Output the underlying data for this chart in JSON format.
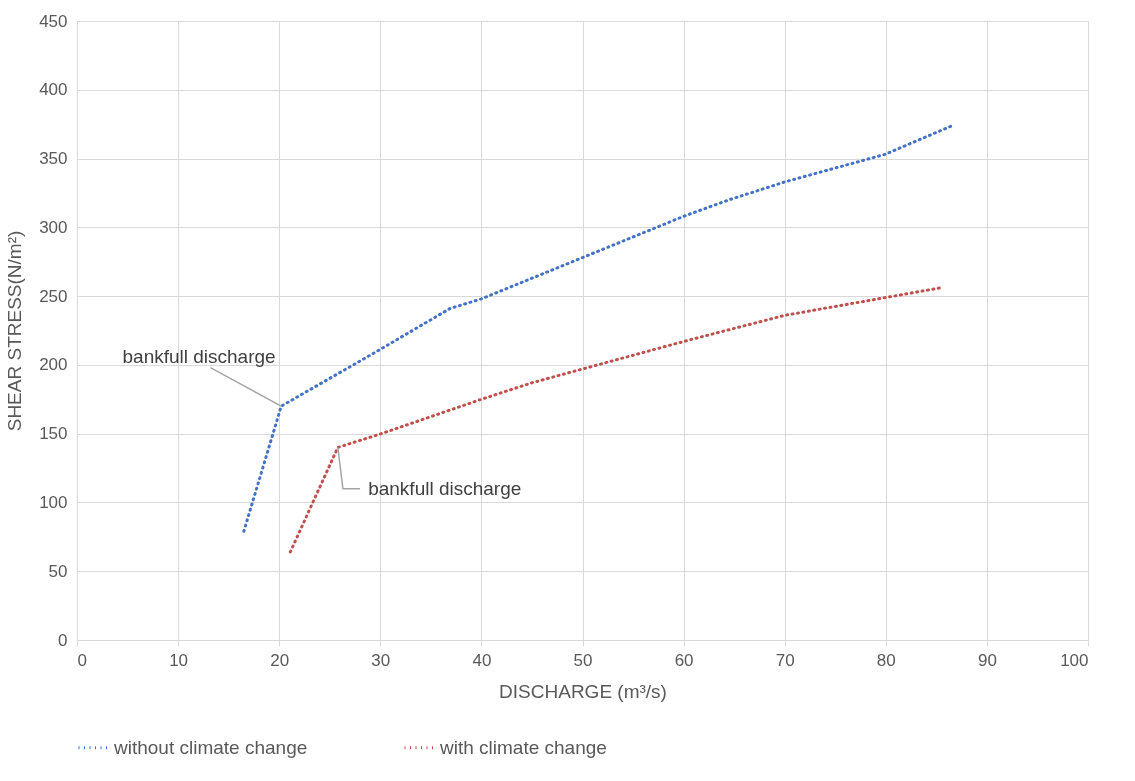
{
  "chart_data": {
    "type": "line",
    "xlabel": "DISCHARGE (m³/s)",
    "ylabel": "SHEAR STRESS(N/m²)",
    "xlim": [
      0,
      100
    ],
    "xticks": [
      0,
      10,
      20,
      30,
      40,
      50,
      60,
      70,
      80,
      90,
      100
    ],
    "ylim": [
      0,
      450
    ],
    "yticks": [
      0,
      50,
      100,
      150,
      200,
      250,
      300,
      350,
      400,
      450
    ],
    "grid": true,
    "legend": "bottom",
    "marker": "none",
    "line_style": "dotted",
    "series": [
      {
        "name": "without climate change",
        "color": "#4472c4",
        "x": [
          16.5,
          20.2,
          29.7,
          36.9,
          40,
          50,
          60,
          64.5,
          70,
          79.9,
          86.6
        ],
        "values": [
          79,
          170,
          210,
          241,
          248,
          278,
          308,
          320,
          333,
          353,
          374
        ]
      },
      {
        "name": "with climate change",
        "color": "#c0504d",
        "x": [
          21.1,
          25.8,
          30.1,
          40,
          45,
          50,
          60,
          70,
          80,
          85.4
        ],
        "values": [
          64,
          140,
          150,
          175,
          187,
          197,
          217,
          236,
          249,
          256
        ]
      }
    ],
    "annotations": [
      {
        "text": "bankfull discharge",
        "x": 20.2,
        "y": 170
      },
      {
        "text": "bankfull discharge",
        "x": 25.8,
        "y": 140
      }
    ]
  }
}
